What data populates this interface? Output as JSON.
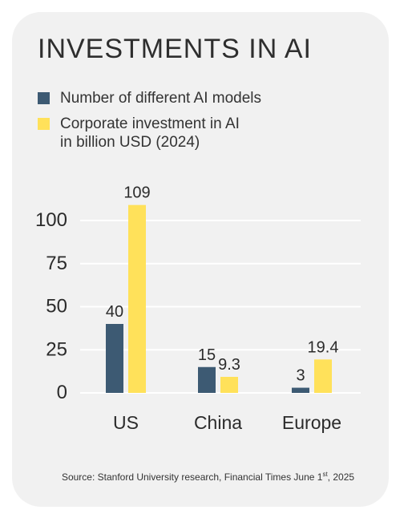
{
  "chart_data": {
    "type": "bar",
    "title": "INVESTMENTS IN AI",
    "categories": [
      "US",
      "China",
      "Europe"
    ],
    "series": [
      {
        "name": "Number of different AI models",
        "values": [
          40,
          15,
          3
        ],
        "labels": [
          "40",
          "15",
          "3"
        ],
        "color": "#3d5a73"
      },
      {
        "name": "Corporate investment in AI\nin billion USD (2024)",
        "values": [
          109,
          9.3,
          19.4
        ],
        "labels": [
          "109",
          "9.3",
          "19.4"
        ],
        "color": "#ffe15a"
      }
    ],
    "yticks": [
      "0",
      "25",
      "50",
      "75",
      "100"
    ],
    "ylim": [
      0,
      100
    ],
    "grid": true,
    "legend_position": "top-left"
  },
  "source": {
    "text_before": "Source: Stanford University research, Financial Times June 1",
    "superscript": "st",
    "text_after": ", 2025"
  },
  "colors": {
    "card_background": "#f1f1f1",
    "gridline": "#ffffff",
    "text": "#2b2b2b"
  }
}
